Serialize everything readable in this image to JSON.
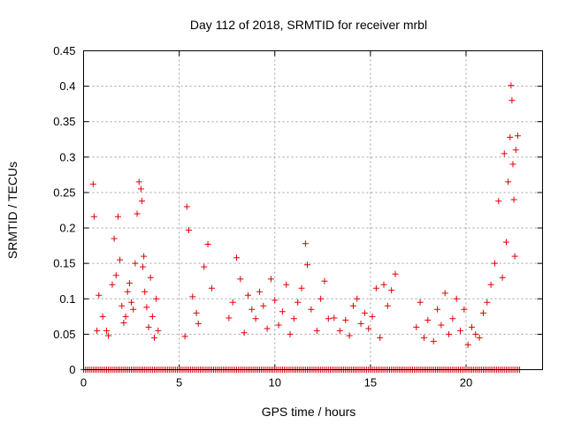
{
  "chart_data": {
    "type": "scatter",
    "title": "Day 112 of 2018, SRMTID for receiver mrbl",
    "xlabel": "GPS time / hours",
    "ylabel": "SRMTID / TECUs",
    "xlim": [
      0,
      24
    ],
    "ylim": [
      0,
      0.45
    ],
    "xticks": [
      "0",
      "5",
      "10",
      "15",
      "20"
    ],
    "yticks": [
      "0",
      "0.05",
      "0.1",
      "0.15",
      "0.2",
      "0.25",
      "0.3",
      "0.35",
      "0.4",
      "0.45"
    ],
    "grid": true,
    "marker": "plus",
    "marker_color": "#e00000",
    "series": [
      {
        "name": "SRMTID",
        "x": [
          0.5,
          0.55,
          0.7,
          0.8,
          1.0,
          1.2,
          1.3,
          1.5,
          1.6,
          1.7,
          1.8,
          1.9,
          2.0,
          2.1,
          2.2,
          2.3,
          2.4,
          2.5,
          2.6,
          2.7,
          2.8,
          2.9,
          3.0,
          3.05,
          3.1,
          3.15,
          3.2,
          3.3,
          3.4,
          3.5,
          3.6,
          3.7,
          3.8,
          3.9,
          5.3,
          5.4,
          5.5,
          5.7,
          5.9,
          6.0,
          6.3,
          6.5,
          6.7,
          7.6,
          7.8,
          8.0,
          8.2,
          8.4,
          8.6,
          8.8,
          9.0,
          9.2,
          9.4,
          9.6,
          9.8,
          10.0,
          10.2,
          10.4,
          10.6,
          10.8,
          11.0,
          11.2,
          11.4,
          11.6,
          11.7,
          11.9,
          12.2,
          12.4,
          12.6,
          12.8,
          13.1,
          13.4,
          13.7,
          13.9,
          14.1,
          14.3,
          14.5,
          14.7,
          14.9,
          15.1,
          15.3,
          15.5,
          15.7,
          15.9,
          16.1,
          16.3,
          17.4,
          17.6,
          17.8,
          18.0,
          18.3,
          18.5,
          18.7,
          18.9,
          19.1,
          19.3,
          19.5,
          19.7,
          19.9,
          20.1,
          20.3,
          20.5,
          20.7,
          20.9,
          21.1,
          21.3,
          21.5,
          21.7,
          21.9,
          22.0,
          22.1,
          22.2,
          22.3,
          22.35,
          22.4,
          22.45,
          22.5,
          22.55,
          22.6,
          22.7
        ],
        "y": [
          0.262,
          0.216,
          0.055,
          0.105,
          0.075,
          0.055,
          0.048,
          0.12,
          0.185,
          0.133,
          0.216,
          0.155,
          0.09,
          0.066,
          0.075,
          0.11,
          0.122,
          0.095,
          0.085,
          0.15,
          0.22,
          0.265,
          0.255,
          0.238,
          0.145,
          0.16,
          0.11,
          0.088,
          0.06,
          0.13,
          0.075,
          0.045,
          0.1,
          0.055,
          0.047,
          0.23,
          0.197,
          0.103,
          0.08,
          0.065,
          0.145,
          0.177,
          0.115,
          0.073,
          0.095,
          0.158,
          0.128,
          0.052,
          0.105,
          0.085,
          0.072,
          0.11,
          0.09,
          0.058,
          0.128,
          0.098,
          0.063,
          0.082,
          0.12,
          0.05,
          0.072,
          0.095,
          0.115,
          0.178,
          0.148,
          0.085,
          0.055,
          0.1,
          0.125,
          0.072,
          0.073,
          0.055,
          0.07,
          0.048,
          0.09,
          0.1,
          0.065,
          0.08,
          0.058,
          0.075,
          0.115,
          0.045,
          0.12,
          0.09,
          0.112,
          0.135,
          0.06,
          0.095,
          0.045,
          0.07,
          0.04,
          0.085,
          0.063,
          0.108,
          0.05,
          0.072,
          0.1,
          0.055,
          0.085,
          0.035,
          0.06,
          0.05,
          0.045,
          0.08,
          0.095,
          0.12,
          0.15,
          0.238,
          0.13,
          0.305,
          0.18,
          0.265,
          0.328,
          0.401,
          0.38,
          0.29,
          0.24,
          0.16,
          0.31,
          0.33
        ]
      },
      {
        "name": "baseline",
        "y_value": 0,
        "x_range": [
          0,
          22.8
        ],
        "x_step": 0.1
      }
    ]
  }
}
